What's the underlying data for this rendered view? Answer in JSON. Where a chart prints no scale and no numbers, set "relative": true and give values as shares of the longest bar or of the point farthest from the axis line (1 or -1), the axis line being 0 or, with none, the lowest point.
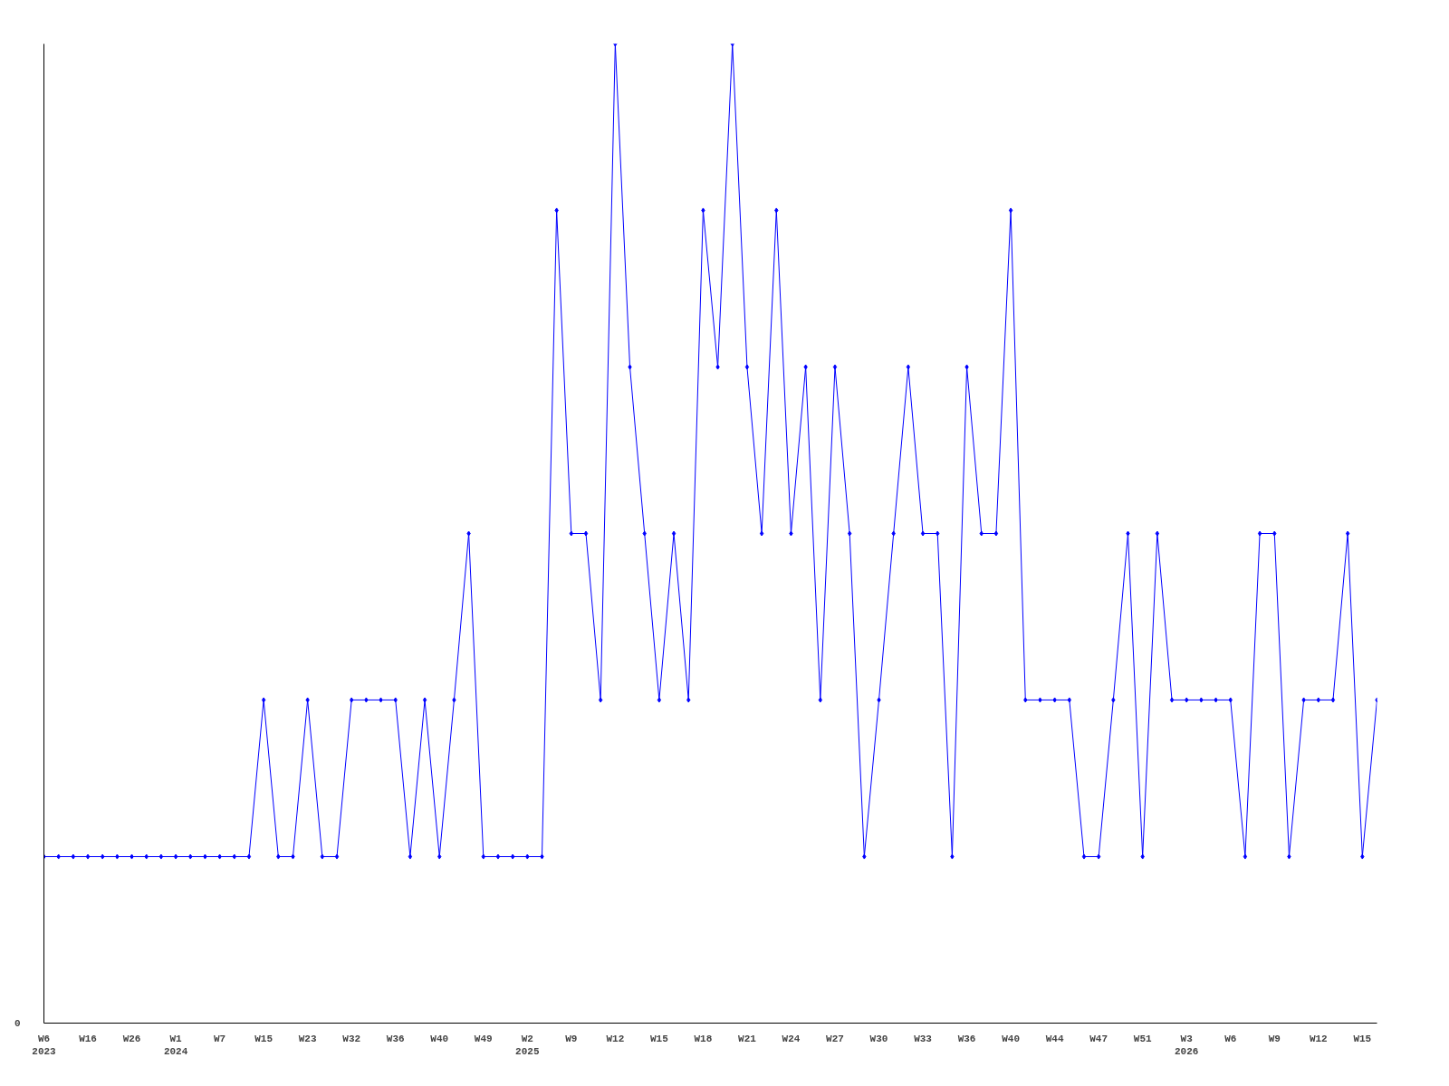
{
  "chart_data": {
    "type": "line",
    "relative": true,
    "color": "#0000ff",
    "marker": "diamond",
    "grid": false,
    "annotations": [
      "0"
    ],
    "categories": [
      "W6\n2023",
      null,
      null,
      "W16",
      null,
      null,
      "W26",
      null,
      null,
      "W1\n2024",
      null,
      null,
      "W7",
      null,
      null,
      "W15",
      null,
      null,
      "W23",
      null,
      null,
      "W32",
      null,
      null,
      "W36",
      null,
      null,
      "W40",
      null,
      null,
      "W49",
      null,
      null,
      "W2\n2025",
      null,
      null,
      "W9",
      null,
      null,
      "W12",
      null,
      null,
      "W15",
      null,
      null,
      "W18",
      null,
      null,
      "W21",
      null,
      null,
      "W24",
      null,
      null,
      "W27",
      null,
      null,
      "W30",
      null,
      null,
      "W33",
      null,
      null,
      "W36",
      null,
      null,
      "W40",
      null,
      null,
      "W44",
      null,
      null,
      "W47",
      null,
      null,
      "W51",
      null,
      null,
      "W3\n2026",
      null,
      null,
      "W6",
      null,
      null,
      "W9",
      null,
      null,
      "W12",
      null,
      null,
      "W15",
      null
    ],
    "values": [
      0.17,
      0.17,
      0.17,
      0.17,
      0.17,
      0.17,
      0.17,
      0.17,
      0.17,
      0.17,
      0.17,
      0.17,
      0.17,
      0.17,
      0.17,
      0.33,
      0.17,
      0.17,
      0.33,
      0.17,
      0.17,
      0.33,
      0.33,
      0.33,
      0.33,
      0.17,
      0.33,
      0.17,
      0.33,
      0.5,
      0.17,
      0.17,
      0.17,
      0.17,
      0.17,
      0.83,
      0.5,
      0.5,
      0.33,
      1,
      0.67,
      0.5,
      0.33,
      0.5,
      0.33,
      0.83,
      0.67,
      1,
      0.67,
      0.5,
      0.83,
      0.5,
      0.67,
      0.33,
      0.67,
      0.5,
      0.17,
      0.33,
      0.5,
      0.67,
      0.5,
      0.5,
      0.17,
      0.67,
      0.5,
      0.5,
      0.83,
      0.33,
      0.33,
      0.33,
      0.33,
      0.17,
      0.17,
      0.33,
      0.5,
      0.17,
      0.5,
      0.33,
      0.33,
      0.33,
      0.33,
      0.33,
      0.17,
      0.5,
      0.5,
      0.17,
      0.33,
      0.33,
      0.33,
      0.5,
      0.17,
      0.33
    ]
  }
}
